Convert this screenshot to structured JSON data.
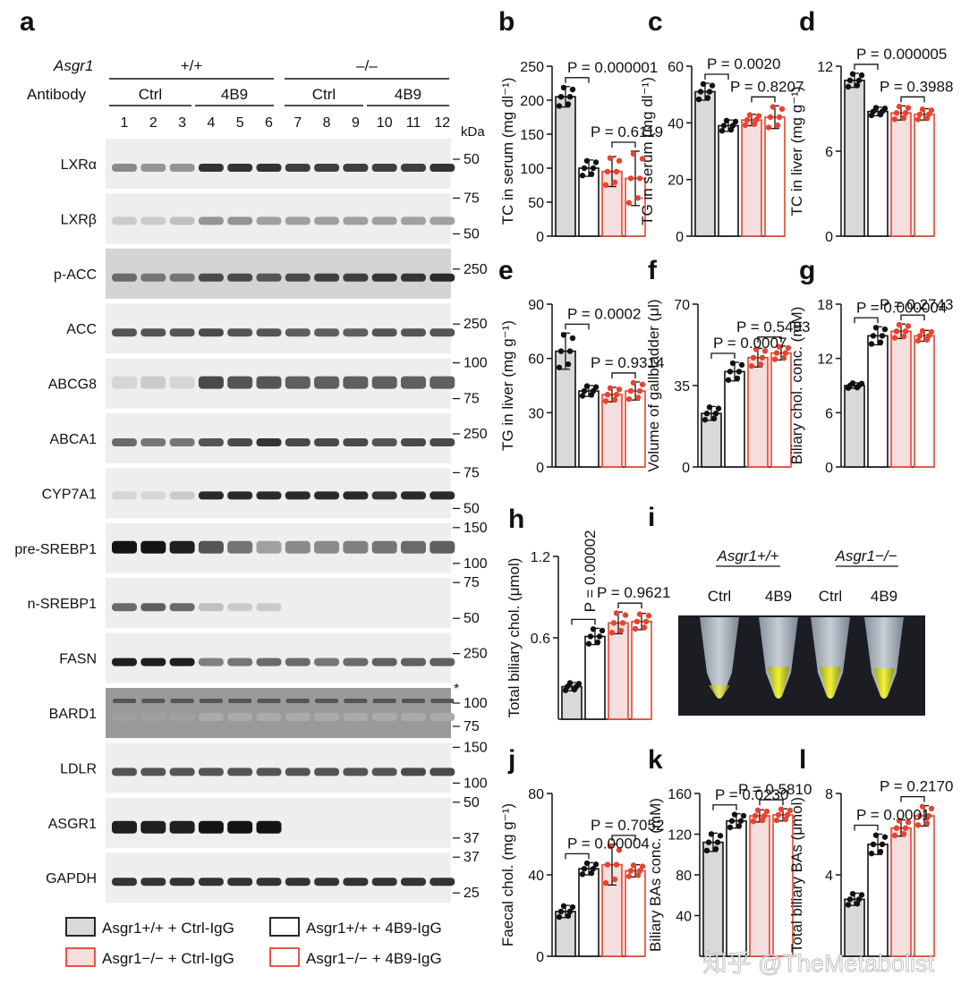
{
  "panel_letters": {
    "a": "a",
    "b": "b",
    "c": "c",
    "d": "d",
    "e": "e",
    "f": "f",
    "g": "g",
    "h": "h",
    "i": "i",
    "j": "j",
    "k": "k",
    "l": "l"
  },
  "blot": {
    "genotype_label": "Asgr1",
    "genotype_wt": "+/+",
    "genotype_ko": "–/–",
    "antibody_label": "Antibody",
    "groups": [
      "Ctrl",
      "4B9",
      "Ctrl",
      "4B9"
    ],
    "lanes": [
      "1",
      "2",
      "3",
      "4",
      "5",
      "6",
      "7",
      "8",
      "9",
      "10",
      "11",
      "12"
    ],
    "kda_label": "kDa",
    "proteins": [
      {
        "name": "LXRα",
        "markers": [
          "50"
        ]
      },
      {
        "name": "LXRβ",
        "markers": [
          "75",
          "50"
        ]
      },
      {
        "name": "p-ACC",
        "markers": [
          "250"
        ]
      },
      {
        "name": "ACC",
        "markers": [
          "250"
        ]
      },
      {
        "name": "ABCG8",
        "markers": [
          "100",
          "75"
        ]
      },
      {
        "name": "ABCA1",
        "markers": [
          "250"
        ]
      },
      {
        "name": "CYP7A1",
        "markers": [
          "75",
          "50"
        ]
      },
      {
        "name": "pre-SREBP1",
        "markers": [
          "150",
          "100"
        ]
      },
      {
        "name": "n-SREBP1",
        "markers": [
          "75",
          "50"
        ]
      },
      {
        "name": "FASN",
        "markers": [
          "250"
        ]
      },
      {
        "name": "BARD1",
        "markers": [
          "*",
          "100",
          "75"
        ]
      },
      {
        "name": "LDLR",
        "markers": [
          "150",
          "100"
        ]
      },
      {
        "name": "ASGR1",
        "markers": [
          "50",
          "37"
        ]
      },
      {
        "name": "GAPDH",
        "markers": [
          "37",
          "25"
        ]
      }
    ]
  },
  "colors": {
    "wt_fill": "#d9d9d9",
    "ko_fill": "#f4dede",
    "ko_edge": "#e8432e",
    "black": "#111111"
  },
  "chart_data": [
    {
      "id": "b",
      "type": "bar",
      "ylabel": "TC in serum (mg dl⁻¹)",
      "ylim": [
        0,
        250
      ],
      "yticks": [
        "0",
        "50",
        "100",
        "150",
        "200",
        "250"
      ],
      "values": [
        205,
        100,
        95,
        85
      ],
      "errors": [
        15,
        12,
        22,
        40
      ],
      "comparisons": [
        {
          "label": "P = 0.000001"
        },
        {
          "label": "P = 0.6119"
        }
      ]
    },
    {
      "id": "c",
      "type": "bar",
      "ylabel": "TG in serum (mg dl⁻¹)",
      "ylim": [
        0,
        60
      ],
      "yticks": [
        "0",
        "20",
        "40",
        "60"
      ],
      "values": [
        51,
        39,
        41,
        42
      ],
      "errors": [
        3,
        2,
        2,
        4
      ],
      "comparisons": [
        {
          "label": "P = 0.0020"
        },
        {
          "label": "P = 0.8207"
        }
      ]
    },
    {
      "id": "d",
      "type": "bar",
      "ylabel": "TC in liver (mg g⁻¹)",
      "ylim": [
        0,
        12
      ],
      "yticks": [
        "0",
        "6",
        "12"
      ],
      "values": [
        11,
        8.8,
        8.7,
        8.6
      ],
      "errors": [
        0.5,
        0.3,
        0.5,
        0.4
      ],
      "comparisons": [
        {
          "label": "P = 0.000005"
        },
        {
          "label": "P = 0.3988"
        }
      ]
    },
    {
      "id": "e",
      "type": "bar",
      "ylabel": "TG in liver (mg g⁻¹)",
      "ylim": [
        0,
        90
      ],
      "yticks": [
        "0",
        "30",
        "60",
        "90"
      ],
      "values": [
        64,
        42,
        40,
        42
      ],
      "errors": [
        10,
        3,
        4,
        5
      ],
      "comparisons": [
        {
          "label": "P = 0.0002"
        },
        {
          "label": "P = 0.9314"
        }
      ]
    },
    {
      "id": "f",
      "type": "bar",
      "ylabel": "Volume of gallbladder (μl)",
      "ylim": [
        0,
        70
      ],
      "yticks": [
        "0",
        "35",
        "70"
      ],
      "values": [
        23,
        41,
        47,
        49
      ],
      "errors": [
        3,
        4,
        4,
        3
      ],
      "comparisons": [
        {
          "label": "P = 0.0007"
        },
        {
          "label": "P = 0.5493"
        }
      ]
    },
    {
      "id": "g",
      "type": "bar",
      "ylabel": "Biliary chol. conc. (mM)",
      "ylim": [
        0,
        18
      ],
      "yticks": [
        "0",
        "6",
        "12",
        "18"
      ],
      "values": [
        9,
        14.5,
        15,
        14.5
      ],
      "errors": [
        0.3,
        1,
        0.8,
        0.6
      ],
      "comparisons": [
        {
          "label": "P = 0.000004"
        },
        {
          "label": "P = 0.2743"
        }
      ]
    },
    {
      "id": "h",
      "type": "bar",
      "ylabel": "Total biliary chol. (μmol)",
      "ylim": [
        0,
        1.2
      ],
      "yticks": [
        "0.6",
        "1.2"
      ],
      "values": [
        0.24,
        0.61,
        0.71,
        0.72
      ],
      "errors": [
        0.03,
        0.06,
        0.08,
        0.06
      ],
      "comparisons": [
        {
          "label": "P = 0.00002"
        },
        {
          "label": "P = 0.9621"
        }
      ]
    },
    {
      "id": "j",
      "type": "bar",
      "ylabel": "Faecal chol. (mg g⁻¹)",
      "ylim": [
        0,
        80
      ],
      "yticks": [
        "0",
        "40",
        "80"
      ],
      "values": [
        22,
        43,
        45,
        42
      ],
      "errors": [
        3,
        3,
        10,
        3
      ],
      "comparisons": [
        {
          "label": "P = 0.00004"
        },
        {
          "label": "P = 0.7052"
        }
      ]
    },
    {
      "id": "k",
      "type": "bar",
      "ylabel": "Biliary BAs conc. (mM)",
      "ylim": [
        0,
        160
      ],
      "yticks": [
        "40",
        "80",
        "120",
        "160"
      ],
      "values": [
        112,
        133,
        138,
        139
      ],
      "errors": [
        9,
        7,
        6,
        6
      ],
      "comparisons": [
        {
          "label": "P = 0.0230"
        },
        {
          "label": "P = 0.5810"
        }
      ]
    },
    {
      "id": "l",
      "type": "bar",
      "ylabel": "Total biliary BAs (μmol)",
      "ylim": [
        0,
        8
      ],
      "yticks": [
        "4",
        "8"
      ],
      "values": [
        2.8,
        5.5,
        6.3,
        6.9
      ],
      "errors": [
        0.3,
        0.5,
        0.4,
        0.5
      ],
      "comparisons": [
        {
          "label": "P = 0.0001"
        },
        {
          "label": "P = 0.2170"
        }
      ]
    }
  ],
  "photo": {
    "genotype_wt": "Asgr1+/+",
    "genotype_ko": "Asgr1−/−",
    "tube_labels": [
      "Ctrl",
      "4B9",
      "Ctrl",
      "4B9"
    ]
  },
  "legend": [
    {
      "label": "Asgr1+/+ + Ctrl-IgG"
    },
    {
      "label": "Asgr1+/+ + 4B9-IgG"
    },
    {
      "label": "Asgr1−/− + Ctrl-IgG"
    },
    {
      "label": "Asgr1−/− + 4B9-IgG"
    }
  ],
  "watermark": "知乎 @TheMetabolist"
}
